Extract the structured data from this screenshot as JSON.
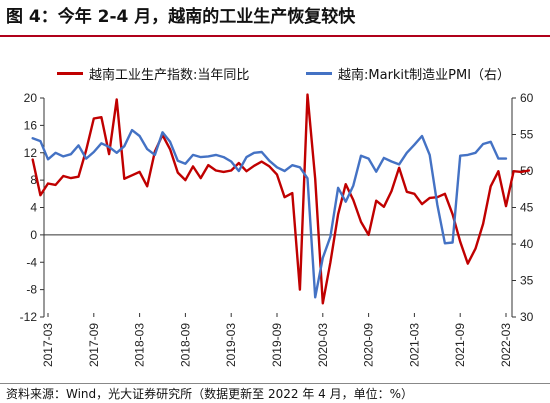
{
  "figure": {
    "title": "图 4：今年 2-4 月，越南的工业生产恢复较快",
    "source": "资料来源：Wind，光大证券研究所（数据更新至 2022 年 4 月，单位：%）"
  },
  "chart_data": {
    "type": "line",
    "title": "",
    "xlabel": "",
    "ylabel": "",
    "x_tick_labels": [
      "2017-03",
      "2017-09",
      "2018-03",
      "2018-09",
      "2019-03",
      "2019-09",
      "2020-03",
      "2020-09",
      "2021-03",
      "2021-09",
      "2022-03"
    ],
    "y_left": {
      "lim": [
        -12,
        20
      ],
      "ticks": [
        -12,
        -8,
        -4,
        0,
        4,
        8,
        12,
        16,
        20
      ]
    },
    "y_right": {
      "lim": [
        30,
        60
      ],
      "ticks": [
        30,
        35,
        40,
        45,
        50,
        55,
        60
      ]
    },
    "grid": false,
    "legend_position": "top",
    "series": [
      {
        "name": "越南工业生产指数:当年同比",
        "axis": "left",
        "color": "#c00000",
        "start": "2017-01",
        "values": [
          11.0,
          5.8,
          7.5,
          7.3,
          8.6,
          8.3,
          8.5,
          12.4,
          17.0,
          17.2,
          11.8,
          19.8,
          8.2,
          8.7,
          9.2,
          7.1,
          12.2,
          14.6,
          12.5,
          9.1,
          8.0,
          10.0,
          8.3,
          10.2,
          9.4,
          9.2,
          9.4,
          10.5,
          9.3,
          10.1,
          10.7,
          10.0,
          8.8,
          5.5,
          6.1,
          -8.0,
          20.5,
          8.2,
          -10.0,
          -4.0,
          3.0,
          7.4,
          5.1,
          1.9,
          0.0,
          5.0,
          4.1,
          6.4,
          9.8,
          6.3,
          6.0,
          4.5,
          5.4,
          5.5,
          6.0,
          3.0,
          -1.0,
          -4.2,
          -2.0,
          1.6,
          7.1,
          9.3,
          4.2,
          9.3,
          9.2,
          9.4
        ]
      },
      {
        "name": "越南:Markit制造业PMI（右）",
        "axis": "right",
        "color": "#4472c4",
        "start": "2017-01",
        "values": [
          54.5,
          54.1,
          51.6,
          52.5,
          52.0,
          52.3,
          53.5,
          51.7,
          52.6,
          53.8,
          53.3,
          52.5,
          53.4,
          55.6,
          54.8,
          53.0,
          52.2,
          55.3,
          54.0,
          51.4,
          51.0,
          52.2,
          51.9,
          52.0,
          52.2,
          51.9,
          51.3,
          50.0,
          51.9,
          52.5,
          52.6,
          51.4,
          50.5,
          50.0,
          50.8,
          50.5,
          49.0,
          32.7,
          38.1,
          41.0,
          47.7,
          45.8,
          48.0,
          52.1,
          51.7,
          49.9,
          51.8,
          51.3,
          50.9,
          52.5,
          53.6,
          54.8,
          52.2,
          45.4,
          40.1,
          40.2,
          52.1,
          52.2,
          52.5,
          53.7,
          54.0,
          51.7,
          51.7
        ]
      }
    ]
  }
}
